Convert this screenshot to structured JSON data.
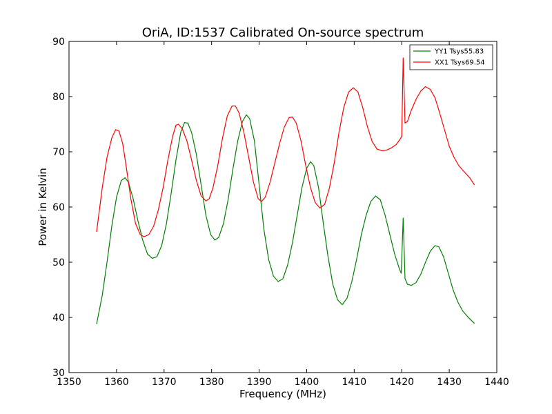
{
  "chart_data": {
    "type": "line",
    "title": "OriA, ID:1537 Calibrated On-source spectrum",
    "xlabel": "Frequency (MHz)",
    "ylabel": "Power in Kelvin",
    "xlim": [
      1350,
      1440
    ],
    "ylim": [
      30,
      90
    ],
    "xticks": [
      1350,
      1360,
      1370,
      1380,
      1390,
      1400,
      1410,
      1420,
      1430,
      1440
    ],
    "yticks": [
      30,
      40,
      50,
      60,
      70,
      80,
      90
    ],
    "grid": false,
    "legend_position": "top-right",
    "series": [
      {
        "name": "YY1 Tsys55.83",
        "color": "#008000",
        "points": [
          [
            1355.8,
            38.8
          ],
          [
            1357.0,
            44.0
          ],
          [
            1358.0,
            50.0
          ],
          [
            1359.0,
            56.5
          ],
          [
            1360.0,
            61.8
          ],
          [
            1361.0,
            64.8
          ],
          [
            1361.8,
            65.3
          ],
          [
            1362.5,
            64.5
          ],
          [
            1363.5,
            61.5
          ],
          [
            1364.5,
            57.5
          ],
          [
            1365.5,
            54.0
          ],
          [
            1366.5,
            51.5
          ],
          [
            1367.5,
            50.7
          ],
          [
            1368.5,
            51.0
          ],
          [
            1369.5,
            53.0
          ],
          [
            1370.5,
            57.0
          ],
          [
            1371.5,
            62.5
          ],
          [
            1372.5,
            68.5
          ],
          [
            1373.5,
            73.5
          ],
          [
            1374.3,
            75.3
          ],
          [
            1375.0,
            75.2
          ],
          [
            1375.8,
            73.5
          ],
          [
            1376.8,
            69.5
          ],
          [
            1377.8,
            64.0
          ],
          [
            1378.8,
            58.5
          ],
          [
            1379.8,
            55.0
          ],
          [
            1380.7,
            54.0
          ],
          [
            1381.5,
            54.5
          ],
          [
            1382.5,
            57.0
          ],
          [
            1383.5,
            61.5
          ],
          [
            1384.5,
            67.0
          ],
          [
            1385.5,
            72.0
          ],
          [
            1386.5,
            75.5
          ],
          [
            1387.3,
            76.7
          ],
          [
            1388.0,
            76.0
          ],
          [
            1389.0,
            72.0
          ],
          [
            1390.0,
            64.0
          ],
          [
            1391.0,
            56.0
          ],
          [
            1392.0,
            50.5
          ],
          [
            1393.0,
            47.5
          ],
          [
            1394.0,
            46.5
          ],
          [
            1395.0,
            47.0
          ],
          [
            1396.0,
            49.5
          ],
          [
            1397.0,
            53.5
          ],
          [
            1398.0,
            58.5
          ],
          [
            1399.0,
            63.5
          ],
          [
            1400.0,
            67.0
          ],
          [
            1400.8,
            68.2
          ],
          [
            1401.5,
            67.5
          ],
          [
            1402.5,
            63.5
          ],
          [
            1403.5,
            57.0
          ],
          [
            1404.5,
            51.0
          ],
          [
            1405.5,
            46.0
          ],
          [
            1406.5,
            43.2
          ],
          [
            1407.5,
            42.3
          ],
          [
            1408.5,
            43.5
          ],
          [
            1409.5,
            46.5
          ],
          [
            1410.5,
            50.5
          ],
          [
            1411.5,
            55.0
          ],
          [
            1412.5,
            58.5
          ],
          [
            1413.5,
            61.0
          ],
          [
            1414.5,
            62.0
          ],
          [
            1415.5,
            61.3
          ],
          [
            1416.5,
            58.5
          ],
          [
            1417.5,
            55.0
          ],
          [
            1418.5,
            51.5
          ],
          [
            1419.5,
            48.8
          ],
          [
            1419.9,
            48.0
          ],
          [
            1420.3,
            58.0
          ],
          [
            1420.7,
            47.0
          ],
          [
            1421.2,
            46.0
          ],
          [
            1422.0,
            45.8
          ],
          [
            1423.0,
            46.3
          ],
          [
            1424.0,
            47.8
          ],
          [
            1425.0,
            50.0
          ],
          [
            1426.0,
            52.0
          ],
          [
            1427.0,
            53.0
          ],
          [
            1427.8,
            52.8
          ],
          [
            1428.8,
            51.0
          ],
          [
            1429.8,
            48.0
          ],
          [
            1430.8,
            45.0
          ],
          [
            1431.8,
            42.8
          ],
          [
            1432.8,
            41.2
          ],
          [
            1433.8,
            40.2
          ],
          [
            1435.3,
            38.9
          ]
        ]
      },
      {
        "name": "XX1 Tsys69.54",
        "color": "#ff0000",
        "points": [
          [
            1355.8,
            55.5
          ],
          [
            1357.0,
            63.5
          ],
          [
            1358.0,
            69.0
          ],
          [
            1359.0,
            72.5
          ],
          [
            1359.8,
            74.0
          ],
          [
            1360.5,
            73.8
          ],
          [
            1361.3,
            71.5
          ],
          [
            1362.0,
            67.5
          ],
          [
            1363.0,
            61.5
          ],
          [
            1364.0,
            57.0
          ],
          [
            1365.0,
            55.0
          ],
          [
            1365.8,
            54.6
          ],
          [
            1366.8,
            55.0
          ],
          [
            1367.8,
            56.5
          ],
          [
            1368.8,
            59.5
          ],
          [
            1369.8,
            63.5
          ],
          [
            1370.8,
            68.5
          ],
          [
            1371.8,
            72.8
          ],
          [
            1372.5,
            74.8
          ],
          [
            1373.0,
            75.0
          ],
          [
            1373.8,
            74.2
          ],
          [
            1374.8,
            72.0
          ],
          [
            1375.8,
            68.5
          ],
          [
            1376.8,
            64.8
          ],
          [
            1377.8,
            62.0
          ],
          [
            1378.8,
            61.1
          ],
          [
            1379.5,
            61.5
          ],
          [
            1380.3,
            63.5
          ],
          [
            1381.3,
            67.5
          ],
          [
            1382.3,
            72.5
          ],
          [
            1383.3,
            76.5
          ],
          [
            1384.3,
            78.3
          ],
          [
            1385.0,
            78.3
          ],
          [
            1385.8,
            77.0
          ],
          [
            1386.8,
            73.5
          ],
          [
            1387.8,
            69.0
          ],
          [
            1388.8,
            64.5
          ],
          [
            1389.8,
            61.5
          ],
          [
            1390.5,
            61.0
          ],
          [
            1391.3,
            61.8
          ],
          [
            1392.3,
            64.5
          ],
          [
            1393.3,
            68.0
          ],
          [
            1394.3,
            71.5
          ],
          [
            1395.3,
            74.5
          ],
          [
            1396.3,
            76.2
          ],
          [
            1397.0,
            76.3
          ],
          [
            1397.8,
            75.2
          ],
          [
            1398.8,
            72.0
          ],
          [
            1399.8,
            67.5
          ],
          [
            1400.8,
            63.5
          ],
          [
            1401.8,
            60.8
          ],
          [
            1402.8,
            59.8
          ],
          [
            1403.8,
            60.5
          ],
          [
            1404.8,
            63.5
          ],
          [
            1405.8,
            68.0
          ],
          [
            1406.8,
            73.5
          ],
          [
            1407.8,
            78.0
          ],
          [
            1408.8,
            80.8
          ],
          [
            1409.8,
            81.6
          ],
          [
            1410.8,
            80.8
          ],
          [
            1411.8,
            78.0
          ],
          [
            1412.8,
            74.5
          ],
          [
            1413.8,
            71.8
          ],
          [
            1414.8,
            70.5
          ],
          [
            1415.8,
            70.2
          ],
          [
            1416.8,
            70.3
          ],
          [
            1417.8,
            70.7
          ],
          [
            1418.8,
            71.3
          ],
          [
            1419.6,
            72.2
          ],
          [
            1420.0,
            72.8
          ],
          [
            1420.3,
            87.0
          ],
          [
            1420.7,
            75.2
          ],
          [
            1421.2,
            75.5
          ],
          [
            1422.0,
            77.5
          ],
          [
            1423.0,
            79.5
          ],
          [
            1424.0,
            81.0
          ],
          [
            1425.0,
            81.8
          ],
          [
            1426.0,
            81.3
          ],
          [
            1427.0,
            79.8
          ],
          [
            1428.0,
            77.0
          ],
          [
            1429.0,
            74.0
          ],
          [
            1430.0,
            71.0
          ],
          [
            1431.0,
            69.0
          ],
          [
            1432.0,
            67.5
          ],
          [
            1433.0,
            66.5
          ],
          [
            1434.3,
            65.3
          ],
          [
            1435.3,
            64.0
          ]
        ]
      }
    ]
  }
}
